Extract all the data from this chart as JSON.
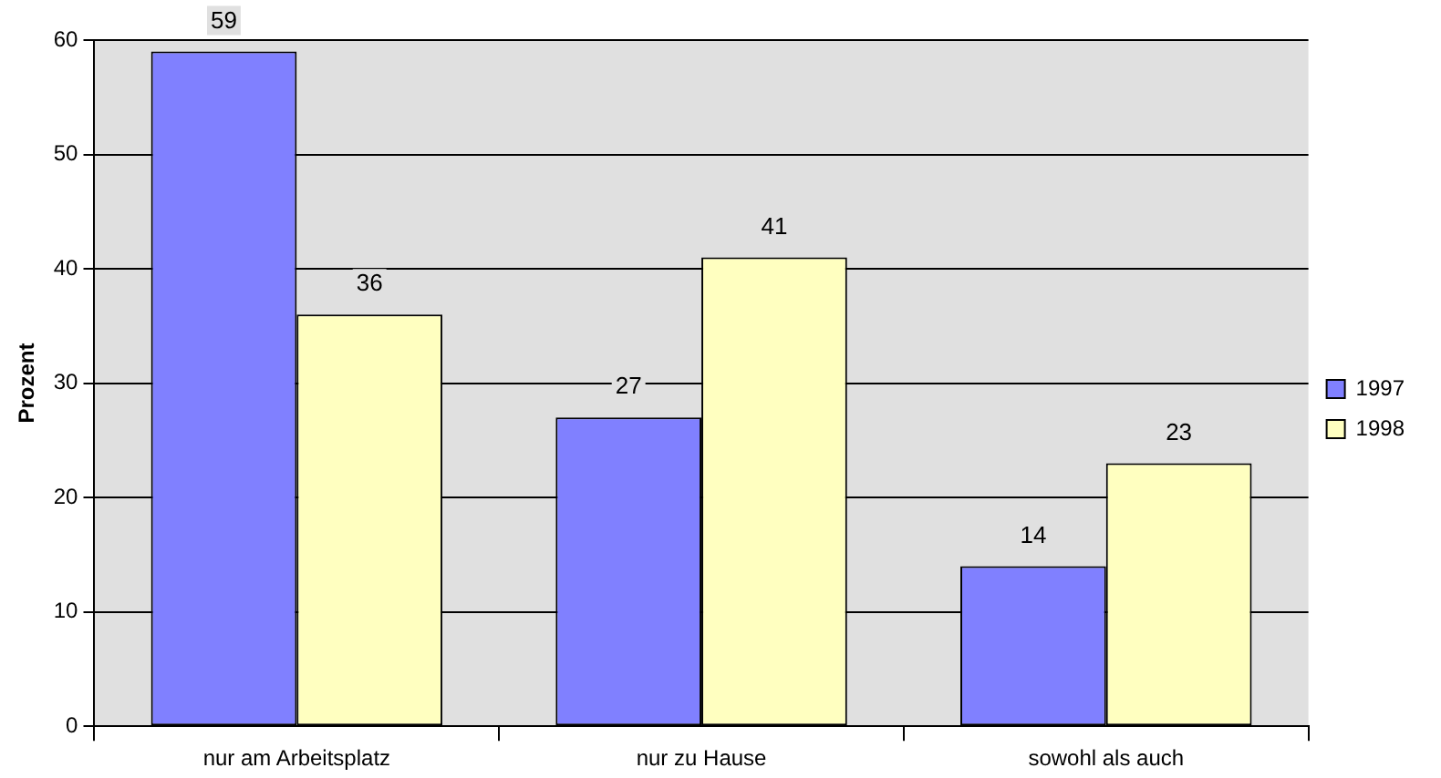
{
  "chart_data": {
    "type": "bar",
    "ylabel": "Prozent",
    "categories": [
      "nur am Arbeitsplatz",
      "nur zu Hause",
      "sowohl als auch"
    ],
    "series": [
      {
        "name": "1997",
        "color": "#8080ff",
        "values": [
          59,
          27,
          14
        ]
      },
      {
        "name": "1998",
        "color": "#ffffc0",
        "values": [
          36,
          41,
          23
        ]
      }
    ],
    "ylim": [
      0,
      60
    ],
    "yticks": [
      0,
      10,
      20,
      30,
      40,
      50,
      60
    ],
    "grid": "y",
    "legend": "right",
    "data_labels": true
  }
}
